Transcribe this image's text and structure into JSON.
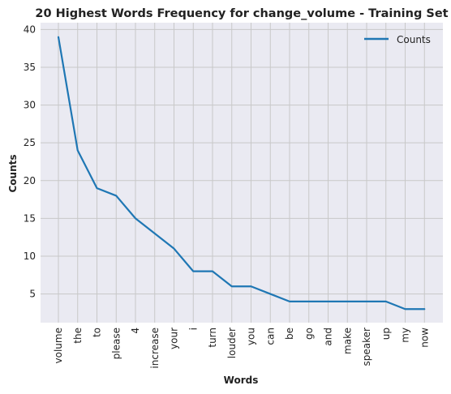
{
  "chart_data": {
    "type": "line",
    "title": "20 Highest Words Frequency for change_volume - Training Set",
    "xlabel": "Words",
    "ylabel": "Counts",
    "categories": [
      "volume",
      "the",
      "to",
      "please",
      "4",
      "increase",
      "your",
      "i",
      "turn",
      "louder",
      "you",
      "can",
      "be",
      "go",
      "and",
      "make",
      "speaker",
      "up",
      "my",
      "now"
    ],
    "series": [
      {
        "name": "Counts",
        "values": [
          39,
          24,
          19,
          18,
          15,
          13,
          11,
          8,
          8,
          6,
          6,
          5,
          4,
          4,
          4,
          4,
          4,
          4,
          3,
          3
        ]
      }
    ],
    "yticks": [
      5,
      10,
      15,
      20,
      25,
      30,
      35,
      40
    ],
    "ylim": [
      1.2,
      40.9
    ],
    "grid": true,
    "legend_position": "top-right",
    "colors": {
      "line": "#1f77b4",
      "plot_background": "#eaeaf2",
      "grid": "#c8c8c8"
    }
  }
}
